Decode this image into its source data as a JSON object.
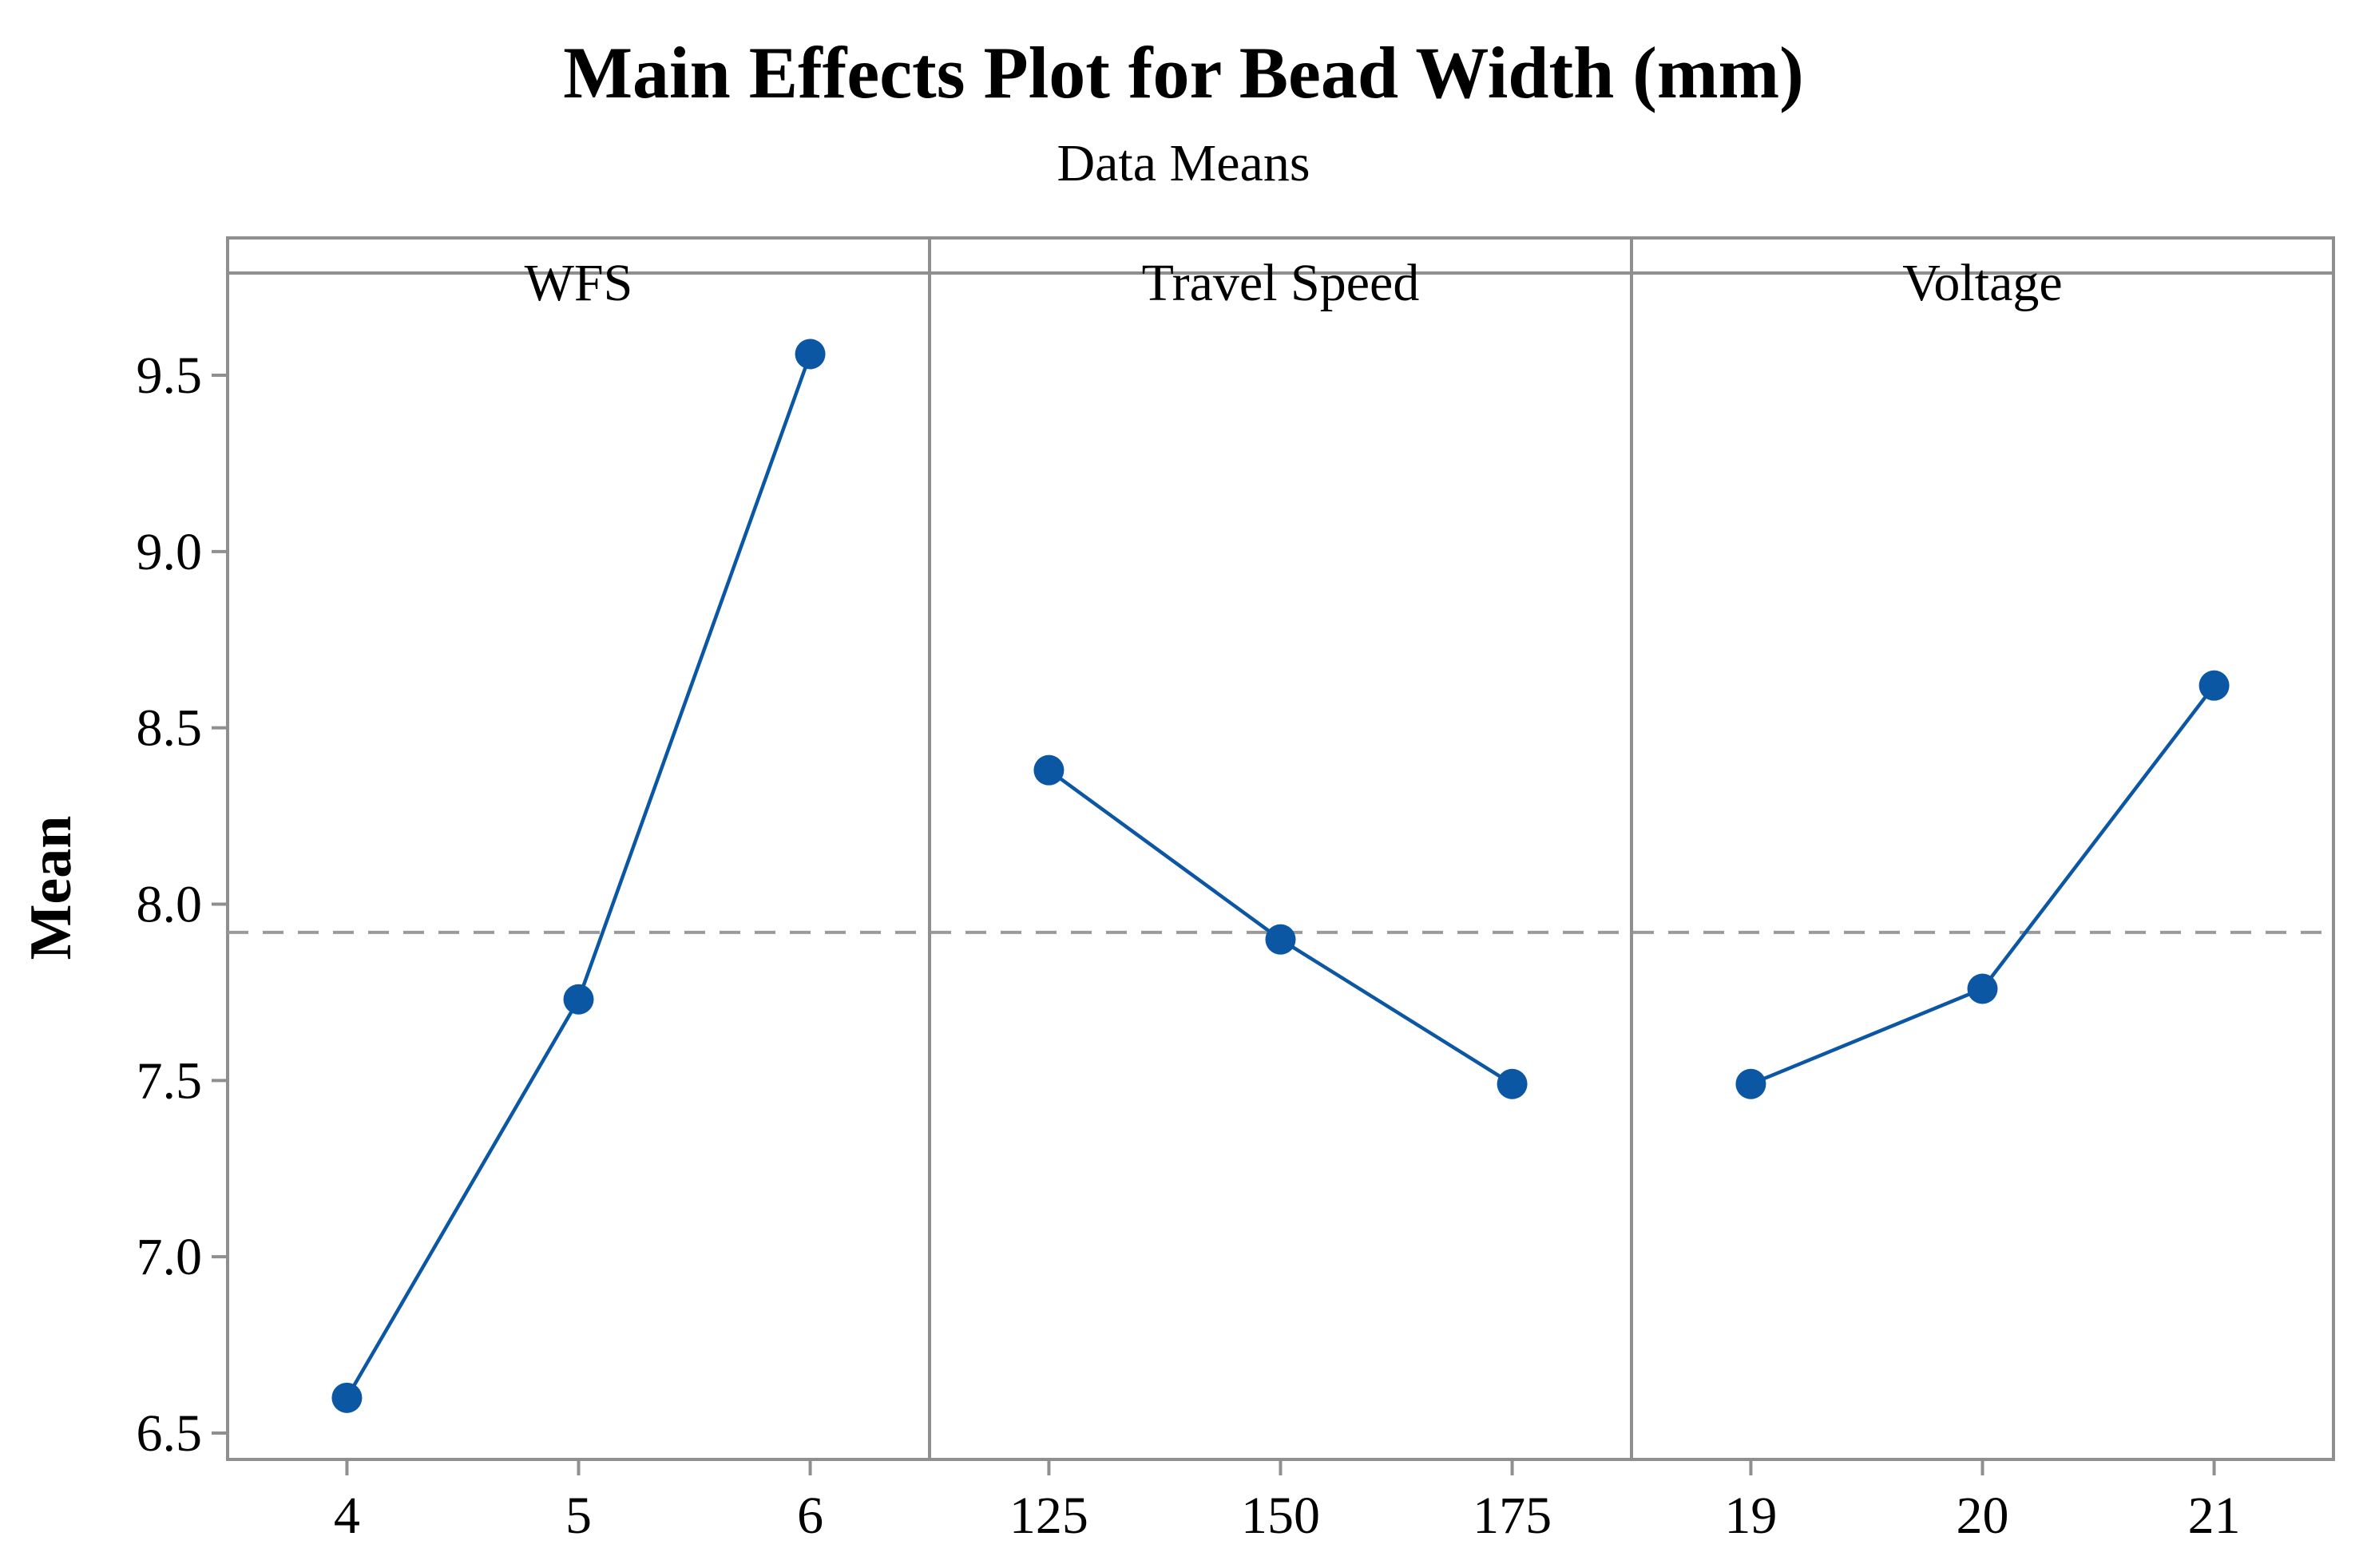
{
  "chart_data": {
    "type": "line",
    "title": "Main Effects Plot for Bead Width (mm)",
    "subtitle": "Data Means",
    "ylabel": "Mean",
    "xlabel": "",
    "ylim": [
      6.43,
      9.74
    ],
    "yticks": [
      6.5,
      7.0,
      7.5,
      8.0,
      8.5,
      9.0,
      9.5
    ],
    "ytick_labels": [
      "6.5",
      "7.0",
      "7.5",
      "8.0",
      "8.5",
      "9.0",
      "9.5"
    ],
    "reference_line": {
      "value": 7.92,
      "style": "dashed"
    },
    "series_color": "#0b57a4",
    "frame_color": "#8f8f8f",
    "panels": [
      {
        "name": "WFS",
        "categories": [
          "4",
          "5",
          "6"
        ],
        "values": [
          6.6,
          7.73,
          9.56
        ]
      },
      {
        "name": "Travel Speed",
        "categories": [
          "125",
          "150",
          "175"
        ],
        "values": [
          8.38,
          7.9,
          7.49
        ]
      },
      {
        "name": "Voltage",
        "categories": [
          "19",
          "20",
          "21"
        ],
        "values": [
          7.49,
          7.76,
          8.62
        ]
      }
    ]
  }
}
